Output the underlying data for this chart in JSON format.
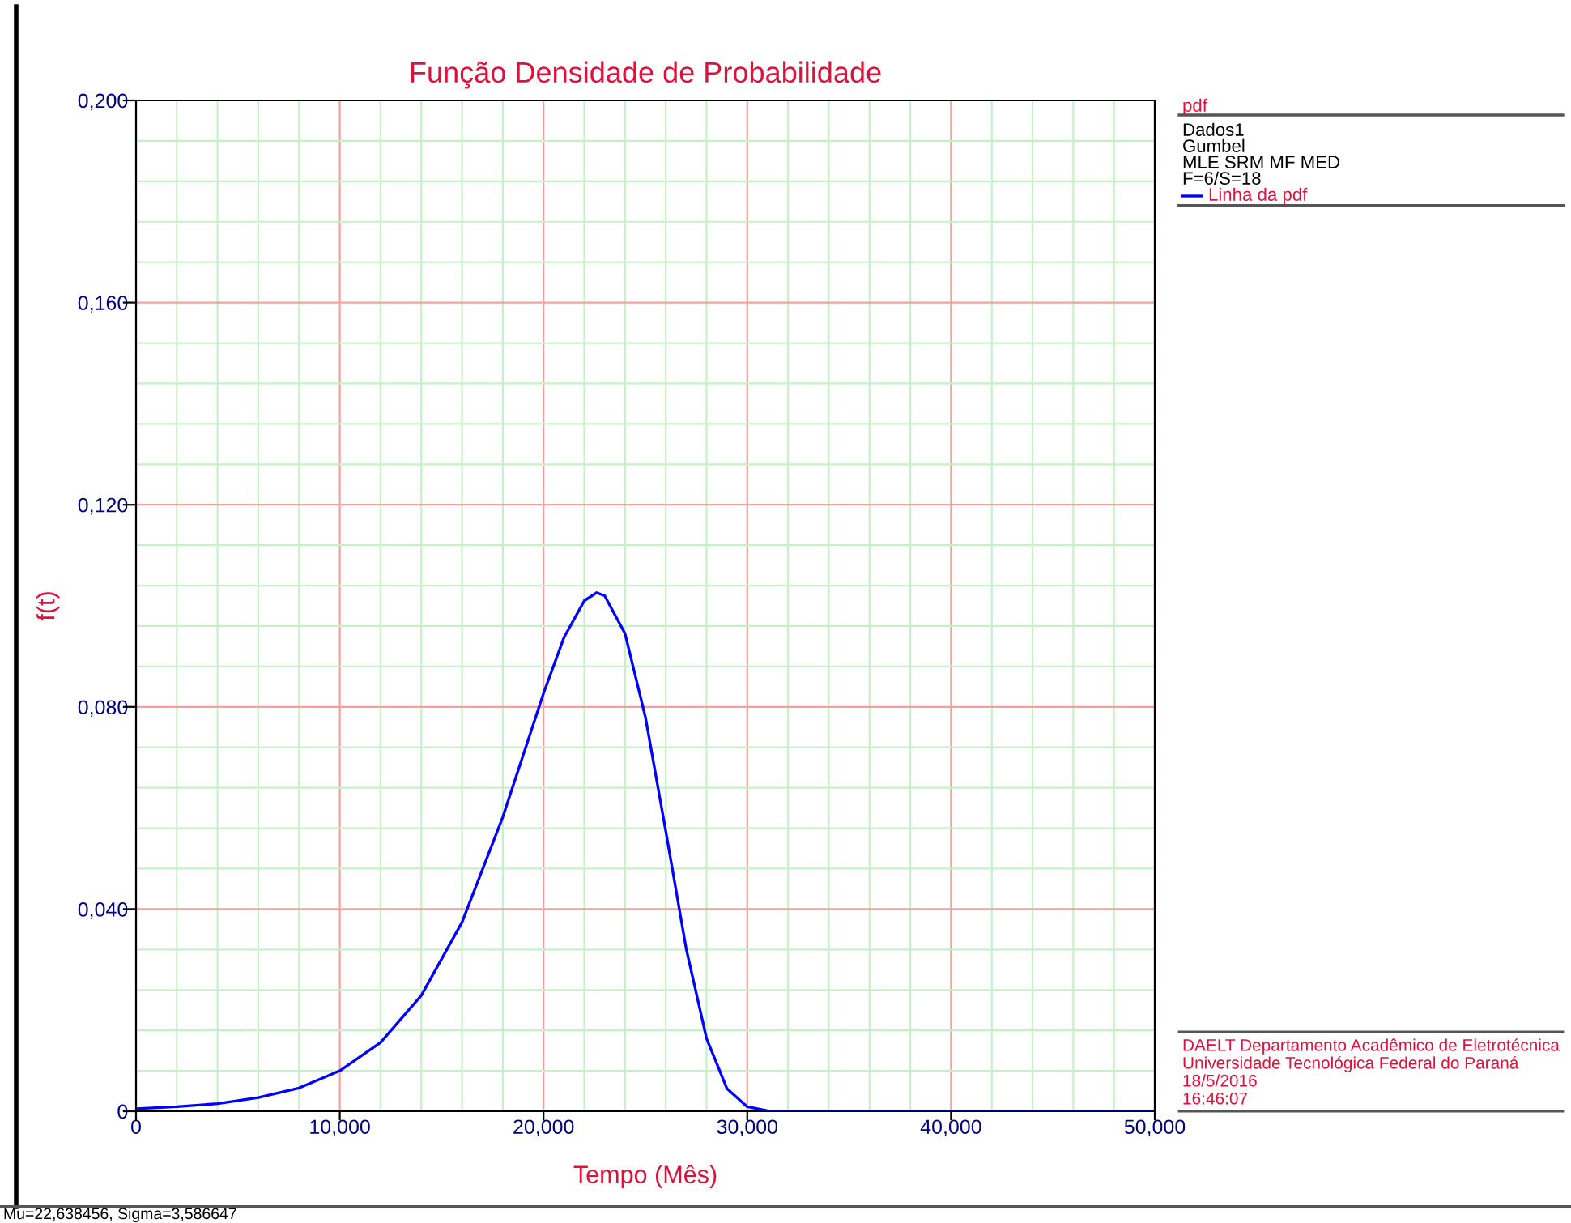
{
  "chart_data": {
    "type": "line",
    "title": "Função Densidade de Probabilidade",
    "xlabel": "Tempo (Mês)",
    "ylabel": "f(t)",
    "legend_title": "pdf",
    "legend": "right",
    "annotations": [
      "Dados1",
      "Gumbel",
      "MLE SRM MF MED",
      "F=6/S=18",
      "DAELT Departamento Acadêmico de Eletrotécnica",
      "Universidade Tecnológica Federal do Paraná",
      "18/5/2016",
      "16:46:07",
      "Mu=22,638456, Sigma=3,586647"
    ],
    "xlim": [
      0,
      50
    ],
    "ylim": [
      0,
      0.2
    ],
    "xticks": [
      {
        "value": 0,
        "label": "0"
      },
      {
        "value": 2,
        "label": null
      },
      {
        "value": 4,
        "label": null
      },
      {
        "value": 6,
        "label": null
      },
      {
        "value": 8,
        "label": null
      },
      {
        "value": 10,
        "label": "10,000"
      },
      {
        "value": 12,
        "label": null
      },
      {
        "value": 14,
        "label": null
      },
      {
        "value": 16,
        "label": null
      },
      {
        "value": 18,
        "label": null
      },
      {
        "value": 20,
        "label": "20,000"
      },
      {
        "value": 22,
        "label": null
      },
      {
        "value": 24,
        "label": null
      },
      {
        "value": 26,
        "label": null
      },
      {
        "value": 28,
        "label": null
      },
      {
        "value": 30,
        "label": "30,000"
      },
      {
        "value": 32,
        "label": null
      },
      {
        "value": 34,
        "label": null
      },
      {
        "value": 36,
        "label": null
      },
      {
        "value": 38,
        "label": null
      },
      {
        "value": 40,
        "label": "40,000"
      },
      {
        "value": 42,
        "label": null
      },
      {
        "value": 44,
        "label": null
      },
      {
        "value": 46,
        "label": null
      },
      {
        "value": 48,
        "label": null
      },
      {
        "value": 50,
        "label": "50,000"
      }
    ],
    "yticks": [
      {
        "value": 0,
        "label": "0"
      },
      {
        "value": 0.008,
        "label": null
      },
      {
        "value": 0.016,
        "label": null
      },
      {
        "value": 0.024,
        "label": null
      },
      {
        "value": 0.032,
        "label": null
      },
      {
        "value": 0.04,
        "label": "0,040"
      },
      {
        "value": 0.048,
        "label": null
      },
      {
        "value": 0.056,
        "label": null
      },
      {
        "value": 0.064,
        "label": null
      },
      {
        "value": 0.072,
        "label": null
      },
      {
        "value": 0.08,
        "label": "0,080"
      },
      {
        "value": 0.088,
        "label": null
      },
      {
        "value": 0.096,
        "label": null
      },
      {
        "value": 0.104,
        "label": null
      },
      {
        "value": 0.112,
        "label": null
      },
      {
        "value": 0.12,
        "label": "0,120"
      },
      {
        "value": 0.128,
        "label": null
      },
      {
        "value": 0.136,
        "label": null
      },
      {
        "value": 0.144,
        "label": null
      },
      {
        "value": 0.152,
        "label": null
      },
      {
        "value": 0.16,
        "label": "0,160"
      },
      {
        "value": 0.168,
        "label": null
      },
      {
        "value": 0.176,
        "label": null
      },
      {
        "value": 0.184,
        "label": null
      },
      {
        "value": 0.192,
        "label": null
      },
      {
        "value": 0.2,
        "label": "0,200"
      }
    ],
    "grid": true,
    "marker": "none",
    "line_style": "solid",
    "x": [
      0,
      2,
      4,
      6,
      8,
      10,
      12,
      14,
      16,
      18,
      20,
      21,
      22,
      22.6,
      23,
      24,
      25,
      26,
      27,
      28,
      29,
      30,
      31,
      32,
      50
    ],
    "series": [
      {
        "name": "Linha da pdf",
        "color": "#0000ff",
        "values": [
          0.0005,
          0.0009,
          0.0015,
          0.0027,
          0.0046,
          0.008,
          0.0136,
          0.0229,
          0.0374,
          0.0582,
          0.0827,
          0.0937,
          0.101,
          0.1026,
          0.102,
          0.0945,
          0.078,
          0.0554,
          0.0322,
          0.0144,
          0.0045,
          0.0009,
          0.0001,
          0,
          0
        ]
      }
    ]
  }
}
